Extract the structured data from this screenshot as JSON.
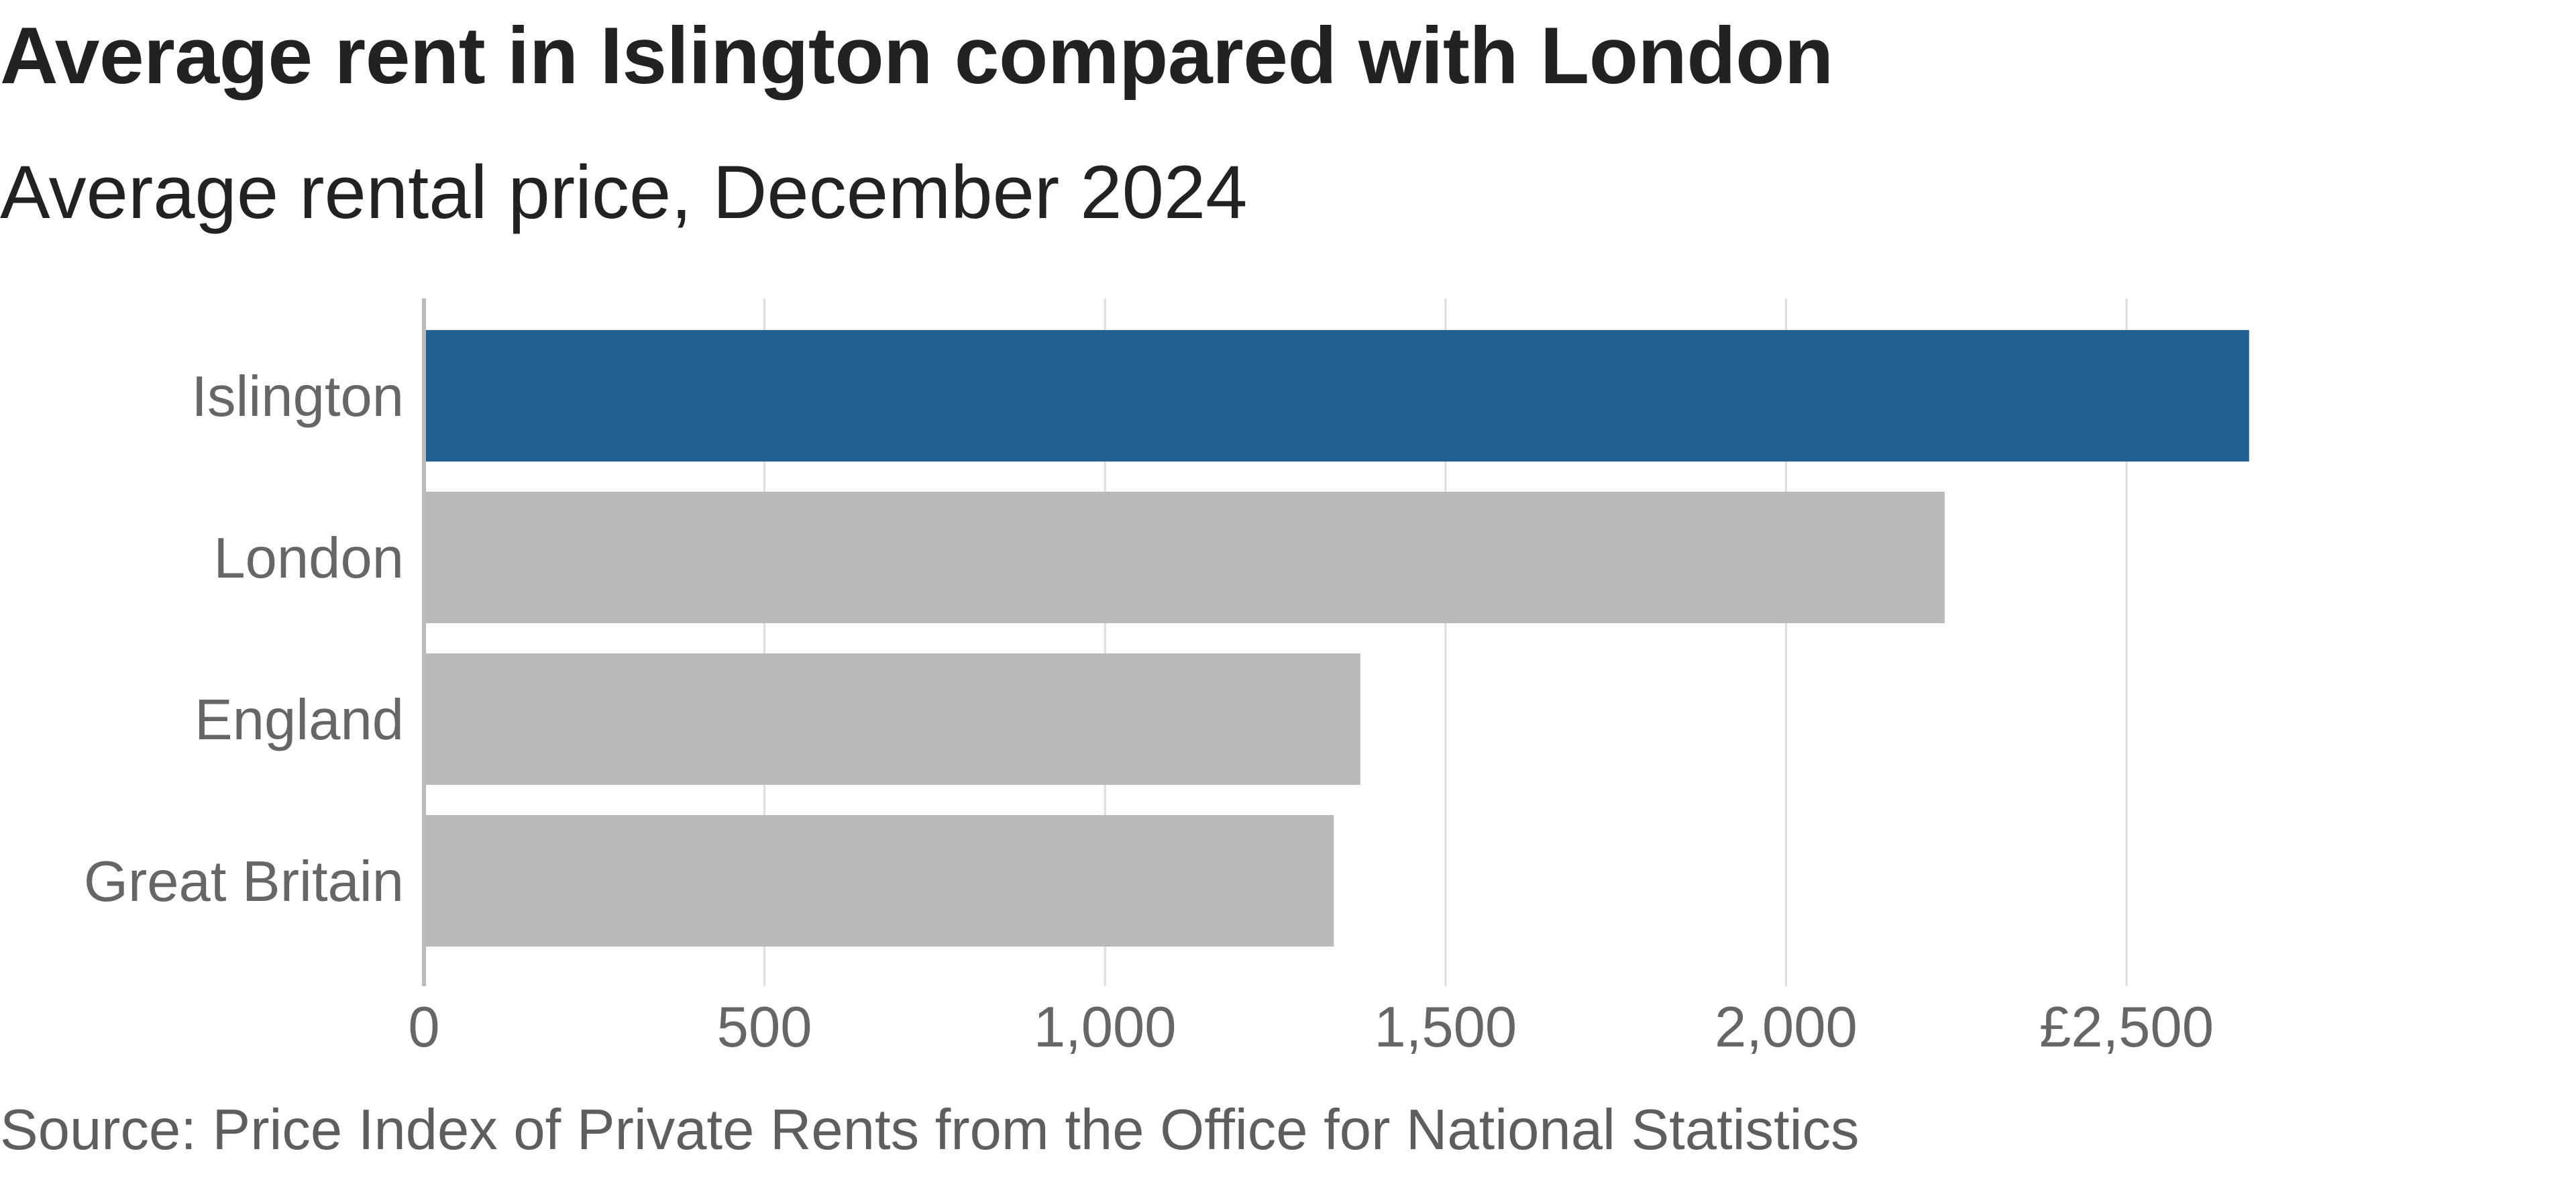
{
  "header": {
    "title": "Average rent in Islington  compared with London",
    "subtitle": "Average rental price, December 2024"
  },
  "footer": {
    "source": "Source: Price Index of Private Rents from the Office for National Statistics"
  },
  "colors": {
    "highlight": "#225f93",
    "bar": "#bababa",
    "grid": "#dddddd",
    "axis": "#bbbbbb",
    "label": "#666666"
  },
  "chart_data": {
    "type": "bar",
    "orientation": "horizontal",
    "categories": [
      "Islington",
      "London",
      "England",
      "Great Britain"
    ],
    "values": [
      2680,
      2233,
      1375,
      1336
    ],
    "highlight": [
      "Islington"
    ],
    "xlim": [
      0,
      2500
    ],
    "x_ticks": [
      0,
      500,
      1000,
      1500,
      2000,
      2500
    ],
    "x_tick_labels": [
      "0",
      "500",
      "1,000",
      "1,500",
      "2,000",
      "£2,500"
    ],
    "grid": true,
    "legend": "none",
    "xlabel": "",
    "ylabel": ""
  }
}
